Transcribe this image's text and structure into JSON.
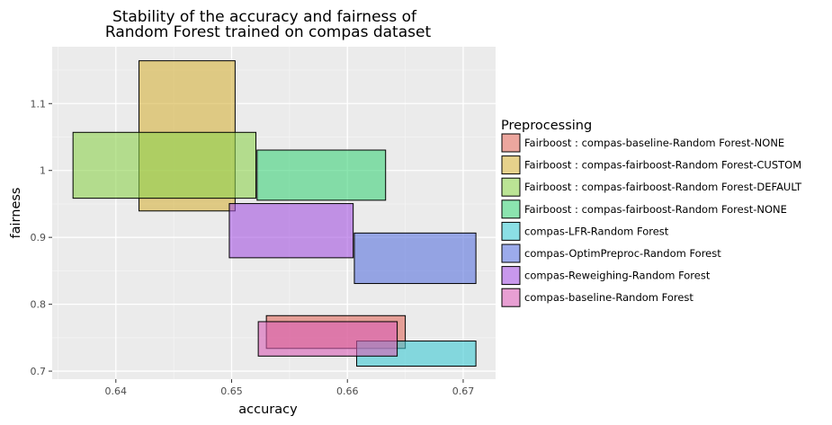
{
  "chart_data": {
    "type": "rect",
    "title_lines": [
      "Stability of the accuracy and fairness of",
      "Random Forest trained on compas dataset"
    ],
    "xlabel": "accuracy",
    "ylabel": "fairness",
    "xlim": [
      0.6345,
      0.6728
    ],
    "ylim": [
      0.688,
      1.185
    ],
    "x_ticks": [
      0.64,
      0.65,
      0.66,
      0.67
    ],
    "x_tick_labels": [
      "0.64",
      "0.65",
      "0.66",
      "0.67"
    ],
    "y_ticks": [
      0.7,
      0.8,
      0.9,
      1.0,
      1.1
    ],
    "y_tick_labels": [
      "0.7",
      "0.8",
      "0.9",
      "1",
      "1.1"
    ],
    "grid": true,
    "legend_title": "Preprocessing",
    "legend_position": "right",
    "series": [
      {
        "name": "Fairboost : compas-baseline-Random Forest-NONE",
        "color": "#e06b5e",
        "xmin": 0.653,
        "xmax": 0.665,
        "ymin": 0.734,
        "ymax": 0.783
      },
      {
        "name": "Fairboost : compas-fairboost-Random Forest-CUSTOM",
        "color": "#d6b23e",
        "xmin": 0.642,
        "xmax": 0.6503,
        "ymin": 0.9395,
        "ymax": 1.164
      },
      {
        "name": "Fairboost : compas-fairboost-Random Forest-DEFAULT",
        "color": "#8ed24e",
        "xmin": 0.6363,
        "xmax": 0.6521,
        "ymin": 0.9585,
        "ymax": 1.057
      },
      {
        "name": "Fairboost : compas-fairboost-Random Forest-NONE",
        "color": "#3ed27a",
        "xmin": 0.6522,
        "xmax": 0.6633,
        "ymin": 0.9555,
        "ymax": 1.0305
      },
      {
        "name": "compas-LFR-Random Forest",
        "color": "#3ec9d3",
        "xmin": 0.6608,
        "xmax": 0.6711,
        "ymin": 0.7075,
        "ymax": 0.745
      },
      {
        "name": "compas-OptimPreproc-Random Forest",
        "color": "#5a73dd",
        "xmin": 0.6606,
        "xmax": 0.6711,
        "ymin": 0.831,
        "ymax": 0.9065
      },
      {
        "name": "compas-Reweighing-Random Forest",
        "color": "#a353e0",
        "xmin": 0.6498,
        "xmax": 0.6605,
        "ymin": 0.8695,
        "ymax": 0.9505
      },
      {
        "name": "compas-baseline-Random Forest",
        "color": "#d85fb5",
        "xmin": 0.6523,
        "xmax": 0.6643,
        "ymin": 0.7225,
        "ymax": 0.774
      }
    ]
  }
}
